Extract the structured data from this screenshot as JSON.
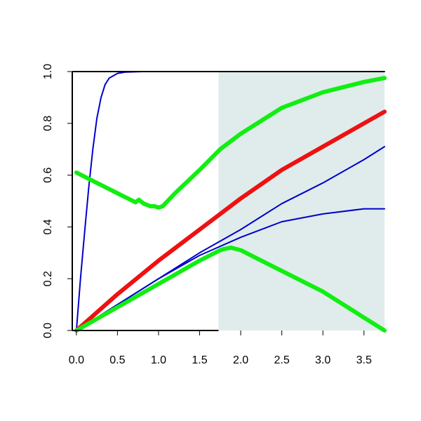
{
  "chart_data": {
    "type": "line",
    "title": "",
    "xlabel": "",
    "ylabel": "",
    "xlim": [
      -0.05,
      3.75
    ],
    "ylim": [
      0,
      1
    ],
    "x_ticks": [
      0,
      0.5,
      1,
      1.5,
      2,
      2.5,
      3,
      3.5
    ],
    "x_tick_labels": [
      "0.0",
      "0.5",
      "1.0",
      "1.5",
      "2.0",
      "2.5",
      "3.0",
      "3.5"
    ],
    "y_ticks": [
      0,
      0.2,
      0.4,
      0.6,
      0.8,
      1
    ],
    "y_tick_labels": [
      "0.0",
      "0.2",
      "0.4",
      "0.6",
      "0.8",
      "1.0"
    ],
    "shaded_region": {
      "x_from": 1.73,
      "x_to": 3.75,
      "color": "#dfeceb"
    },
    "grid": false,
    "legend": "none",
    "series": [
      {
        "color": "#0000cc",
        "weight": "thin",
        "points": [
          [
            0,
            0
          ],
          [
            0.05,
            0.2
          ],
          [
            0.1,
            0.38
          ],
          [
            0.15,
            0.55
          ],
          [
            0.2,
            0.7
          ],
          [
            0.25,
            0.82
          ],
          [
            0.3,
            0.9
          ],
          [
            0.35,
            0.95
          ],
          [
            0.4,
            0.975
          ],
          [
            0.5,
            0.993
          ],
          [
            0.6,
            0.998
          ],
          [
            0.8,
            1
          ],
          [
            3.75,
            1
          ]
        ]
      },
      {
        "color": "#0000cc",
        "weight": "thin",
        "points": [
          [
            0,
            0
          ],
          [
            0.5,
            0.1
          ],
          [
            1,
            0.2
          ],
          [
            1.5,
            0.29
          ],
          [
            2,
            0.36
          ],
          [
            2.5,
            0.42
          ],
          [
            3,
            0.45
          ],
          [
            3.5,
            0.47
          ],
          [
            3.75,
            0.47
          ]
        ]
      },
      {
        "color": "#0000cc",
        "weight": "thin",
        "points": [
          [
            0,
            0
          ],
          [
            0.5,
            0.1
          ],
          [
            1,
            0.2
          ],
          [
            1.5,
            0.3
          ],
          [
            2,
            0.39
          ],
          [
            2.5,
            0.49
          ],
          [
            3,
            0.57
          ],
          [
            3.5,
            0.66
          ],
          [
            3.75,
            0.71
          ]
        ]
      },
      {
        "color": "#ee1111",
        "weight": "thick",
        "points": [
          [
            0,
            0
          ],
          [
            0.5,
            0.14
          ],
          [
            1,
            0.27
          ],
          [
            1.5,
            0.39
          ],
          [
            2,
            0.51
          ],
          [
            2.5,
            0.62
          ],
          [
            3,
            0.71
          ],
          [
            3.5,
            0.8
          ],
          [
            3.75,
            0.845
          ]
        ]
      },
      {
        "color": "#11ee11",
        "weight": "thick",
        "points": [
          [
            0,
            0.61
          ],
          [
            0.25,
            0.57
          ],
          [
            0.5,
            0.53
          ],
          [
            0.72,
            0.495
          ],
          [
            0.76,
            0.505
          ],
          [
            0.82,
            0.49
          ],
          [
            0.9,
            0.48
          ],
          [
            0.95,
            0.48
          ],
          [
            1,
            0.475
          ],
          [
            1.05,
            0.48
          ],
          [
            1.2,
            0.53
          ],
          [
            1.5,
            0.62
          ],
          [
            1.75,
            0.7
          ],
          [
            2,
            0.76
          ],
          [
            2.5,
            0.86
          ],
          [
            3,
            0.92
          ],
          [
            3.5,
            0.96
          ],
          [
            3.75,
            0.975
          ]
        ]
      },
      {
        "color": "#11ee11",
        "weight": "thick",
        "points": [
          [
            0,
            0
          ],
          [
            0.5,
            0.09
          ],
          [
            1,
            0.18
          ],
          [
            1.5,
            0.27
          ],
          [
            1.75,
            0.31
          ],
          [
            1.8,
            0.315
          ],
          [
            1.88,
            0.32
          ],
          [
            2,
            0.31
          ],
          [
            2.5,
            0.23
          ],
          [
            3,
            0.15
          ],
          [
            3.5,
            0.05
          ],
          [
            3.75,
            0
          ]
        ]
      }
    ]
  }
}
